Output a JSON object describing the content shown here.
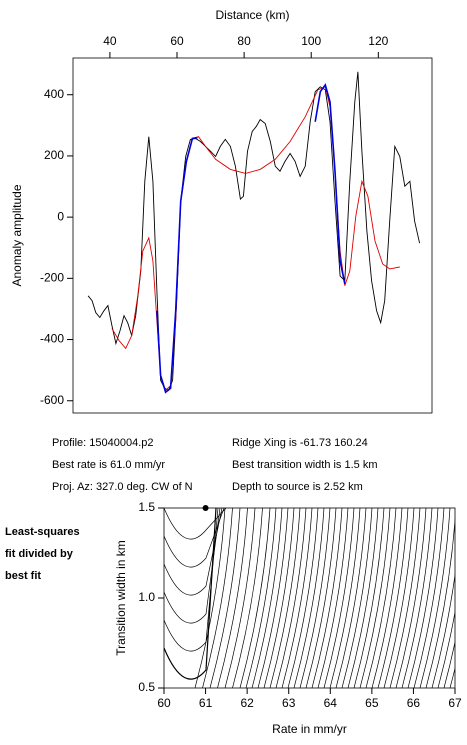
{
  "chart_data": [
    {
      "type": "line",
      "x_label": "Distance (km)",
      "y_label": "Anomaly amplitude",
      "x_axis_side": "top",
      "xlim": [
        29,
        136
      ],
      "xticks": [
        40,
        60,
        80,
        100,
        120
      ],
      "ylim": [
        -640,
        520
      ],
      "yticks": [
        -600,
        -400,
        -200,
        0,
        200,
        400
      ],
      "series": [
        {
          "color": "#000000",
          "x": [
            33.5,
            34.7,
            35.8,
            37,
            38.2,
            39.4,
            40.6,
            41.8,
            43,
            44.2,
            45.3,
            46.5,
            47.7,
            49.2,
            50.4,
            51.6,
            52.8,
            54,
            55.1,
            56.3,
            57.5,
            58.7,
            59.9,
            61.1,
            62.6,
            64,
            65.5,
            67,
            68.5,
            70,
            71.5,
            72.9,
            74.4,
            75.9,
            77.4,
            78.9,
            79.8,
            81,
            82.4,
            83.6,
            84.8,
            86.3,
            87.8,
            89.3,
            90.7,
            92.2,
            93.7,
            95.2,
            96.7,
            98.2,
            99.7,
            101.2,
            102.7,
            104.2,
            105.6,
            107.1,
            108.6,
            110,
            111.5,
            113,
            113.9,
            115.1,
            116.6,
            118,
            119.5,
            120.7,
            121.9,
            123.4,
            124.9,
            126.4,
            127.9,
            129.4,
            130.8,
            132.3
          ],
          "values": [
            -257,
            -273,
            -312,
            -328,
            -306,
            -289,
            -354,
            -413,
            -371,
            -322,
            -345,
            -387,
            -322,
            -176,
            117,
            263,
            117,
            -241,
            -533,
            -559,
            -566,
            -533,
            -273,
            52,
            198,
            254,
            257,
            247,
            231,
            215,
            198,
            231,
            254,
            231,
            166,
            59,
            68,
            215,
            280,
            296,
            319,
            306,
            247,
            166,
            150,
            182,
            208,
            182,
            133,
            166,
            312,
            410,
            426,
            416,
            312,
            52,
            -192,
            -208,
            117,
            377,
            475,
            215,
            -46,
            -208,
            -306,
            -345,
            -273,
            -13,
            231,
            198,
            101,
            117,
            -13,
            -85
          ]
        },
        {
          "color": "#e00000",
          "x": [
            40.6,
            42.7,
            44.7,
            46.5,
            48.3,
            49.8,
            51.6,
            52.8,
            54,
            55.1,
            56.6,
            58.1,
            59.6,
            61.1,
            62.8,
            64.6,
            66.4,
            68.5,
            71.5,
            75.9,
            80.4,
            84.8,
            89.3,
            93.7,
            98.2,
            102,
            104.2,
            105.6,
            107.1,
            108.6,
            110,
            111.5,
            113.3,
            115.1,
            116.9,
            119,
            121.3,
            123.4,
            126.4
          ],
          "values": [
            -364,
            -403,
            -429,
            -387,
            -257,
            -111,
            -68,
            -143,
            -338,
            -517,
            -566,
            -550,
            -338,
            52,
            182,
            257,
            263,
            231,
            189,
            156,
            143,
            156,
            189,
            247,
            328,
            416,
            426,
            361,
            150,
            -111,
            -224,
            -176,
            3,
            117,
            68,
            -78,
            -153,
            -169,
            -163
          ]
        },
        {
          "color": "#0000e0",
          "x": [
            54,
            55.1,
            56.6,
            58.1,
            59.6,
            61.1,
            62.8,
            64.6,
            66.1,
            null,
            101.2,
            102.7,
            104.2,
            105.6,
            107.1,
            108.6,
            110
          ],
          "values": [
            -306,
            -517,
            -572,
            -559,
            -306,
            52,
            182,
            257,
            260,
            null,
            312,
            410,
            432,
            377,
            150,
            -143,
            -218
          ]
        }
      ],
      "annotations": [
        "Profile: 15040004.p2",
        "Best rate is 61.0 mm/yr",
        "Proj. Az: 327.0 deg. CW of N",
        "Ridge Xing is -61.73 160.24",
        "Best transition width is 1.5 km",
        "Depth to source is   2.52 km"
      ]
    },
    {
      "type": "contour",
      "x_label": "Rate in mm/yr",
      "y_label": "Transition width in km",
      "x_axis_side": "bottom",
      "xlim": [
        60,
        67
      ],
      "xticks": [
        60,
        61,
        62,
        63,
        64,
        65,
        66,
        67
      ],
      "ylim": [
        0.5,
        1.5
      ],
      "yticks": [
        {
          "value": 0.5,
          "label": "0.5"
        },
        {
          "value": 1,
          "label": "1.0"
        },
        {
          "value": 1.5,
          "label": "1.5"
        }
      ],
      "best_fit": {
        "x": 61,
        "y": 1.5
      },
      "annotations": [
        "Least-squares",
        "fit divided by",
        "best fit"
      ]
    }
  ]
}
